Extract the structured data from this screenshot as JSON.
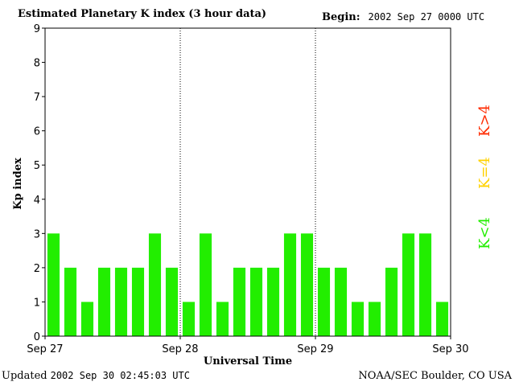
{
  "header": {
    "title": "Estimated Planetary K index (3 hour data)",
    "begin_label": "Begin:",
    "begin_value": "2002 Sep 27 0000 UTC"
  },
  "footer": {
    "updated_label": "Updated",
    "updated_value": "2002 Sep 30 02:45:03 UTC",
    "source": "NOAA/SEC Boulder, CO USA"
  },
  "legend": [
    {
      "label": "K>4",
      "color": "#ff2a00"
    },
    {
      "label": "K=4",
      "color": "#ffd200"
    },
    {
      "label": "K<4",
      "color": "#22ee00"
    }
  ],
  "chart_data": {
    "type": "bar",
    "title": "Estimated Planetary K index (3 hour data)",
    "xlabel": "Universal Time",
    "ylabel": "Kp index",
    "ylim": [
      0,
      9
    ],
    "yticks": [
      "0",
      "1",
      "2",
      "3",
      "4",
      "5",
      "6",
      "7",
      "8",
      "9"
    ],
    "xticks": [
      "Sep 27",
      "Sep 28",
      "Sep 29",
      "Sep 30"
    ],
    "bar_color": "#22ee00",
    "day_separators": true,
    "values": [
      3,
      2,
      1,
      2,
      2,
      2,
      3,
      2,
      1,
      3,
      1,
      2,
      2,
      2,
      3,
      3,
      2,
      2,
      1,
      1,
      2,
      3,
      3,
      1
    ]
  }
}
